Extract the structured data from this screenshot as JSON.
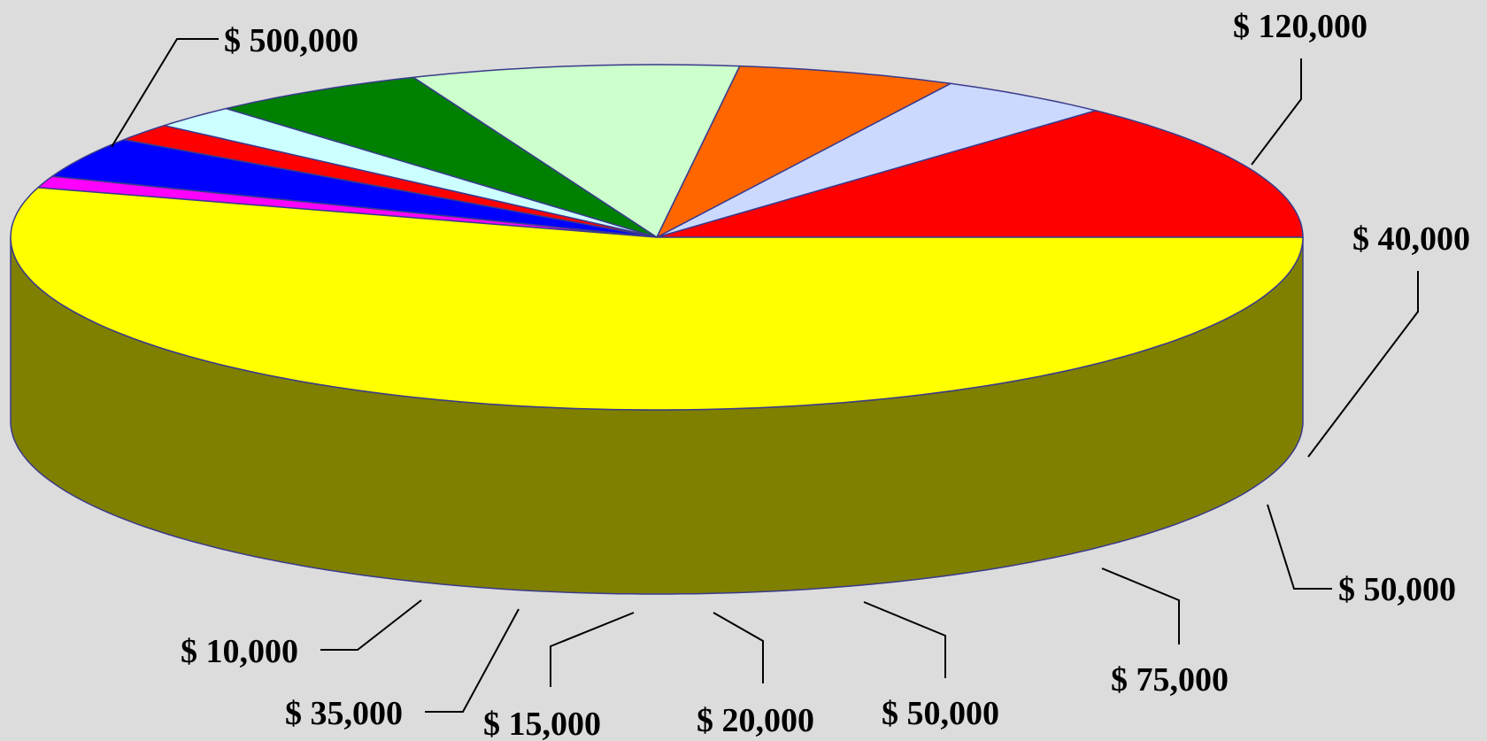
{
  "chart_data": {
    "type": "pie",
    "style": "3d",
    "legend": "none",
    "slices": [
      {
        "label": "$ 120,000",
        "value": 120000,
        "color": "#ff0000",
        "side_color": "#800000"
      },
      {
        "label": "$ 40,000",
        "value": 40000,
        "color": "#ccd9ff",
        "side_color": "#666f8c"
      },
      {
        "label": "$ 50,000",
        "value": 50000,
        "color": "#ff6600",
        "side_color": "#803300"
      },
      {
        "label": "$ 75,000",
        "value": 75000,
        "color": "#ccffcc",
        "side_color": "#668066"
      },
      {
        "label": "$ 50,000",
        "value": 50000,
        "color": "#008000",
        "side_color": "#004000"
      },
      {
        "label": "$ 20,000",
        "value": 20000,
        "color": "#ccffff",
        "side_color": "#668080"
      },
      {
        "label": "$ 15,000",
        "value": 15000,
        "color": "#ff0000",
        "side_color": "#800000"
      },
      {
        "label": "$ 35,000",
        "value": 35000,
        "color": "#0000ff",
        "side_color": "#000080"
      },
      {
        "label": "$ 10,000",
        "value": 10000,
        "color": "#ff00ff",
        "side_color": "#800080"
      },
      {
        "label": "$ 500,000",
        "value": 500000,
        "color": "#ffff00",
        "side_color": "#808000"
      }
    ]
  }
}
